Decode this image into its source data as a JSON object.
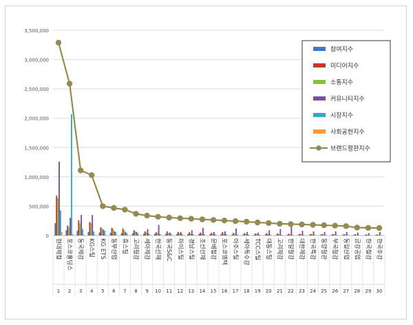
{
  "chart_data": {
    "type": "bar",
    "categories": [
      "현대제철",
      "포스코홀딩스",
      "동국제강",
      "KG스틸",
      "KG ETS",
      "동부산업",
      "휴스틸",
      "고려철강",
      "세아제강",
      "한국선재",
      "동국S&C",
      "하이스틸",
      "경남스틸",
      "조선선재",
      "문배철강",
      "포스코엠텍",
      "아주스틸",
      "세아특수강",
      "TCC스틸",
      "대동스틸",
      "고려제강",
      "한일철강",
      "대한제강",
      "한국특강",
      "동양철관",
      "부국철강",
      "동일산업",
      "금강공업",
      "한국철강",
      "한국주강"
    ],
    "ranks": [
      "1",
      "2",
      "3",
      "4",
      "5",
      "6",
      "7",
      "8",
      "9",
      "10",
      "11",
      "12",
      "13",
      "14",
      "15",
      "16",
      "17",
      "18",
      "19",
      "20",
      "21",
      "22",
      "23",
      "24",
      "25",
      "26",
      "27",
      "28",
      "29",
      "30"
    ],
    "ylim": [
      0,
      3500000
    ],
    "yticks": [
      "0",
      "500,000",
      "1,000,000",
      "1,500,000",
      "2,000,000",
      "2,500,000",
      "3,000,000",
      "3,500,000"
    ],
    "grid": true,
    "legend_position": "right",
    "series": [
      {
        "name": "참여지수",
        "color": "#4472c4",
        "values": [
          210000,
          90000,
          80000,
          60000,
          50000,
          45000,
          40000,
          35000,
          30000,
          30000,
          28000,
          25000,
          24000,
          22000,
          20000,
          20000,
          18000,
          18000,
          16000,
          16000,
          15000,
          15000,
          14000,
          14000,
          13000,
          12000,
          12000,
          11000,
          10000,
          10000
        ]
      },
      {
        "name": "미디어지수",
        "color": "#c0392b",
        "values": [
          680000,
          170000,
          260000,
          230000,
          140000,
          130000,
          120000,
          90000,
          70000,
          55000,
          70000,
          60000,
          55000,
          50000,
          45000,
          60000,
          45000,
          40000,
          35000,
          40000,
          35000,
          30000,
          30000,
          28000,
          25000,
          25000,
          22000,
          20000,
          18000,
          18000
        ]
      },
      {
        "name": "소통지수",
        "color": "#8cbf3f",
        "values": [
          640000,
          140000,
          210000,
          210000,
          120000,
          110000,
          90000,
          70000,
          50000,
          45000,
          40000,
          40000,
          35000,
          35000,
          30000,
          35000,
          30000,
          28000,
          25000,
          25000,
          22000,
          22000,
          20000,
          20000,
          18000,
          18000,
          16000,
          15000,
          14000,
          14000
        ]
      },
      {
        "name": "커뮤니티지수",
        "color": "#7b4fa0",
        "values": [
          1260000,
          300000,
          350000,
          350000,
          100000,
          70000,
          60000,
          60000,
          110000,
          180000,
          50000,
          60000,
          90000,
          130000,
          60000,
          70000,
          120000,
          60000,
          50000,
          90000,
          110000,
          150000,
          80000,
          70000,
          60000,
          70000,
          60000,
          50000,
          40000,
          60000
        ]
      },
      {
        "name": "시장지수",
        "color": "#35a8c8",
        "values": [
          430000,
          2070000,
          110000,
          70000,
          80000,
          60000,
          40000,
          40000,
          30000,
          25000,
          30000,
          25000,
          20000,
          20000,
          18000,
          20000,
          15000,
          15000,
          12000,
          12000,
          10000,
          10000,
          10000,
          10000,
          8000,
          8000,
          8000,
          7000,
          6000,
          6000
        ]
      },
      {
        "name": "사회공헌지수",
        "color": "#f39c3c",
        "values": [
          60000,
          20000,
          15000,
          10000,
          10000,
          8000,
          8000,
          6000,
          6000,
          5000,
          5000,
          5000,
          4000,
          4000,
          4000,
          4000,
          3000,
          3000,
          3000,
          3000,
          3000,
          2000,
          2000,
          2000,
          2000,
          2000,
          2000,
          2000,
          1000,
          1000
        ]
      }
    ],
    "line_series": {
      "name": "브랜드평판지수",
      "color": "#958a52",
      "values": [
        3290000,
        2590000,
        1110000,
        1030000,
        500000,
        470000,
        440000,
        370000,
        340000,
        320000,
        305000,
        295000,
        285000,
        275000,
        265000,
        255000,
        245000,
        235000,
        222000,
        212000,
        200000,
        195000,
        188000,
        182000,
        175000,
        168000,
        160000,
        135000,
        130000,
        128000
      ]
    }
  }
}
